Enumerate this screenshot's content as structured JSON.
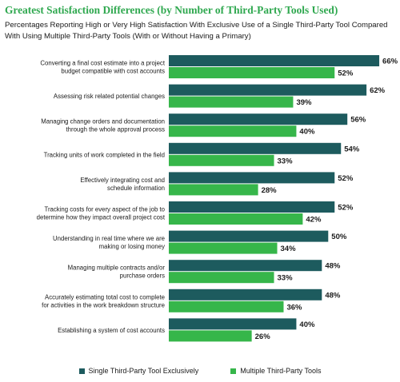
{
  "title": "Greatest Satisfaction Differences (by Number of  Third-Party Tools Used)",
  "subtitle": "Percentages Reporting High or Very High Satisfaction With Exclusive Use of a Single Third-Party Tool Compared With Using Multiple Third-Party Tools (With or Without Having a Primary)",
  "colors": {
    "title": "#2fa84f",
    "single": "#1d5b5e",
    "multiple": "#36b64a"
  },
  "chart_data": {
    "type": "bar",
    "orientation": "horizontal",
    "value_suffix": "%",
    "xlim": [
      0,
      70
    ],
    "grid": false,
    "legend_position": "bottom",
    "categories": [
      [
        "Converting a final cost estimate into a project",
        "budget compatible with cost accounts"
      ],
      [
        "Assessing risk related potential changes"
      ],
      [
        "Managing change orders and documentation",
        "through the whole approval process"
      ],
      [
        "Tracking units of work completed in the field"
      ],
      [
        "Effectively integrating cost and",
        "schedule information"
      ],
      [
        "Tracking costs for every aspect of the job to",
        "determine how they impact overall project cost"
      ],
      [
        "Understanding in real time where we are",
        "making or losing money"
      ],
      [
        "Managing multiple contracts and/or",
        "purchase orders"
      ],
      [
        "Accurately estimating total cost to complete",
        "for activities in the work breakdown structure"
      ],
      [
        "Establishing a system of cost accounts"
      ]
    ],
    "series": [
      {
        "name": "Single Third-Party Tool Exclusively",
        "values": [
          66,
          62,
          56,
          54,
          52,
          52,
          50,
          48,
          48,
          40
        ]
      },
      {
        "name": "Multiple Third-Party Tools",
        "values": [
          52,
          39,
          40,
          33,
          28,
          42,
          34,
          33,
          36,
          26
        ]
      }
    ]
  }
}
